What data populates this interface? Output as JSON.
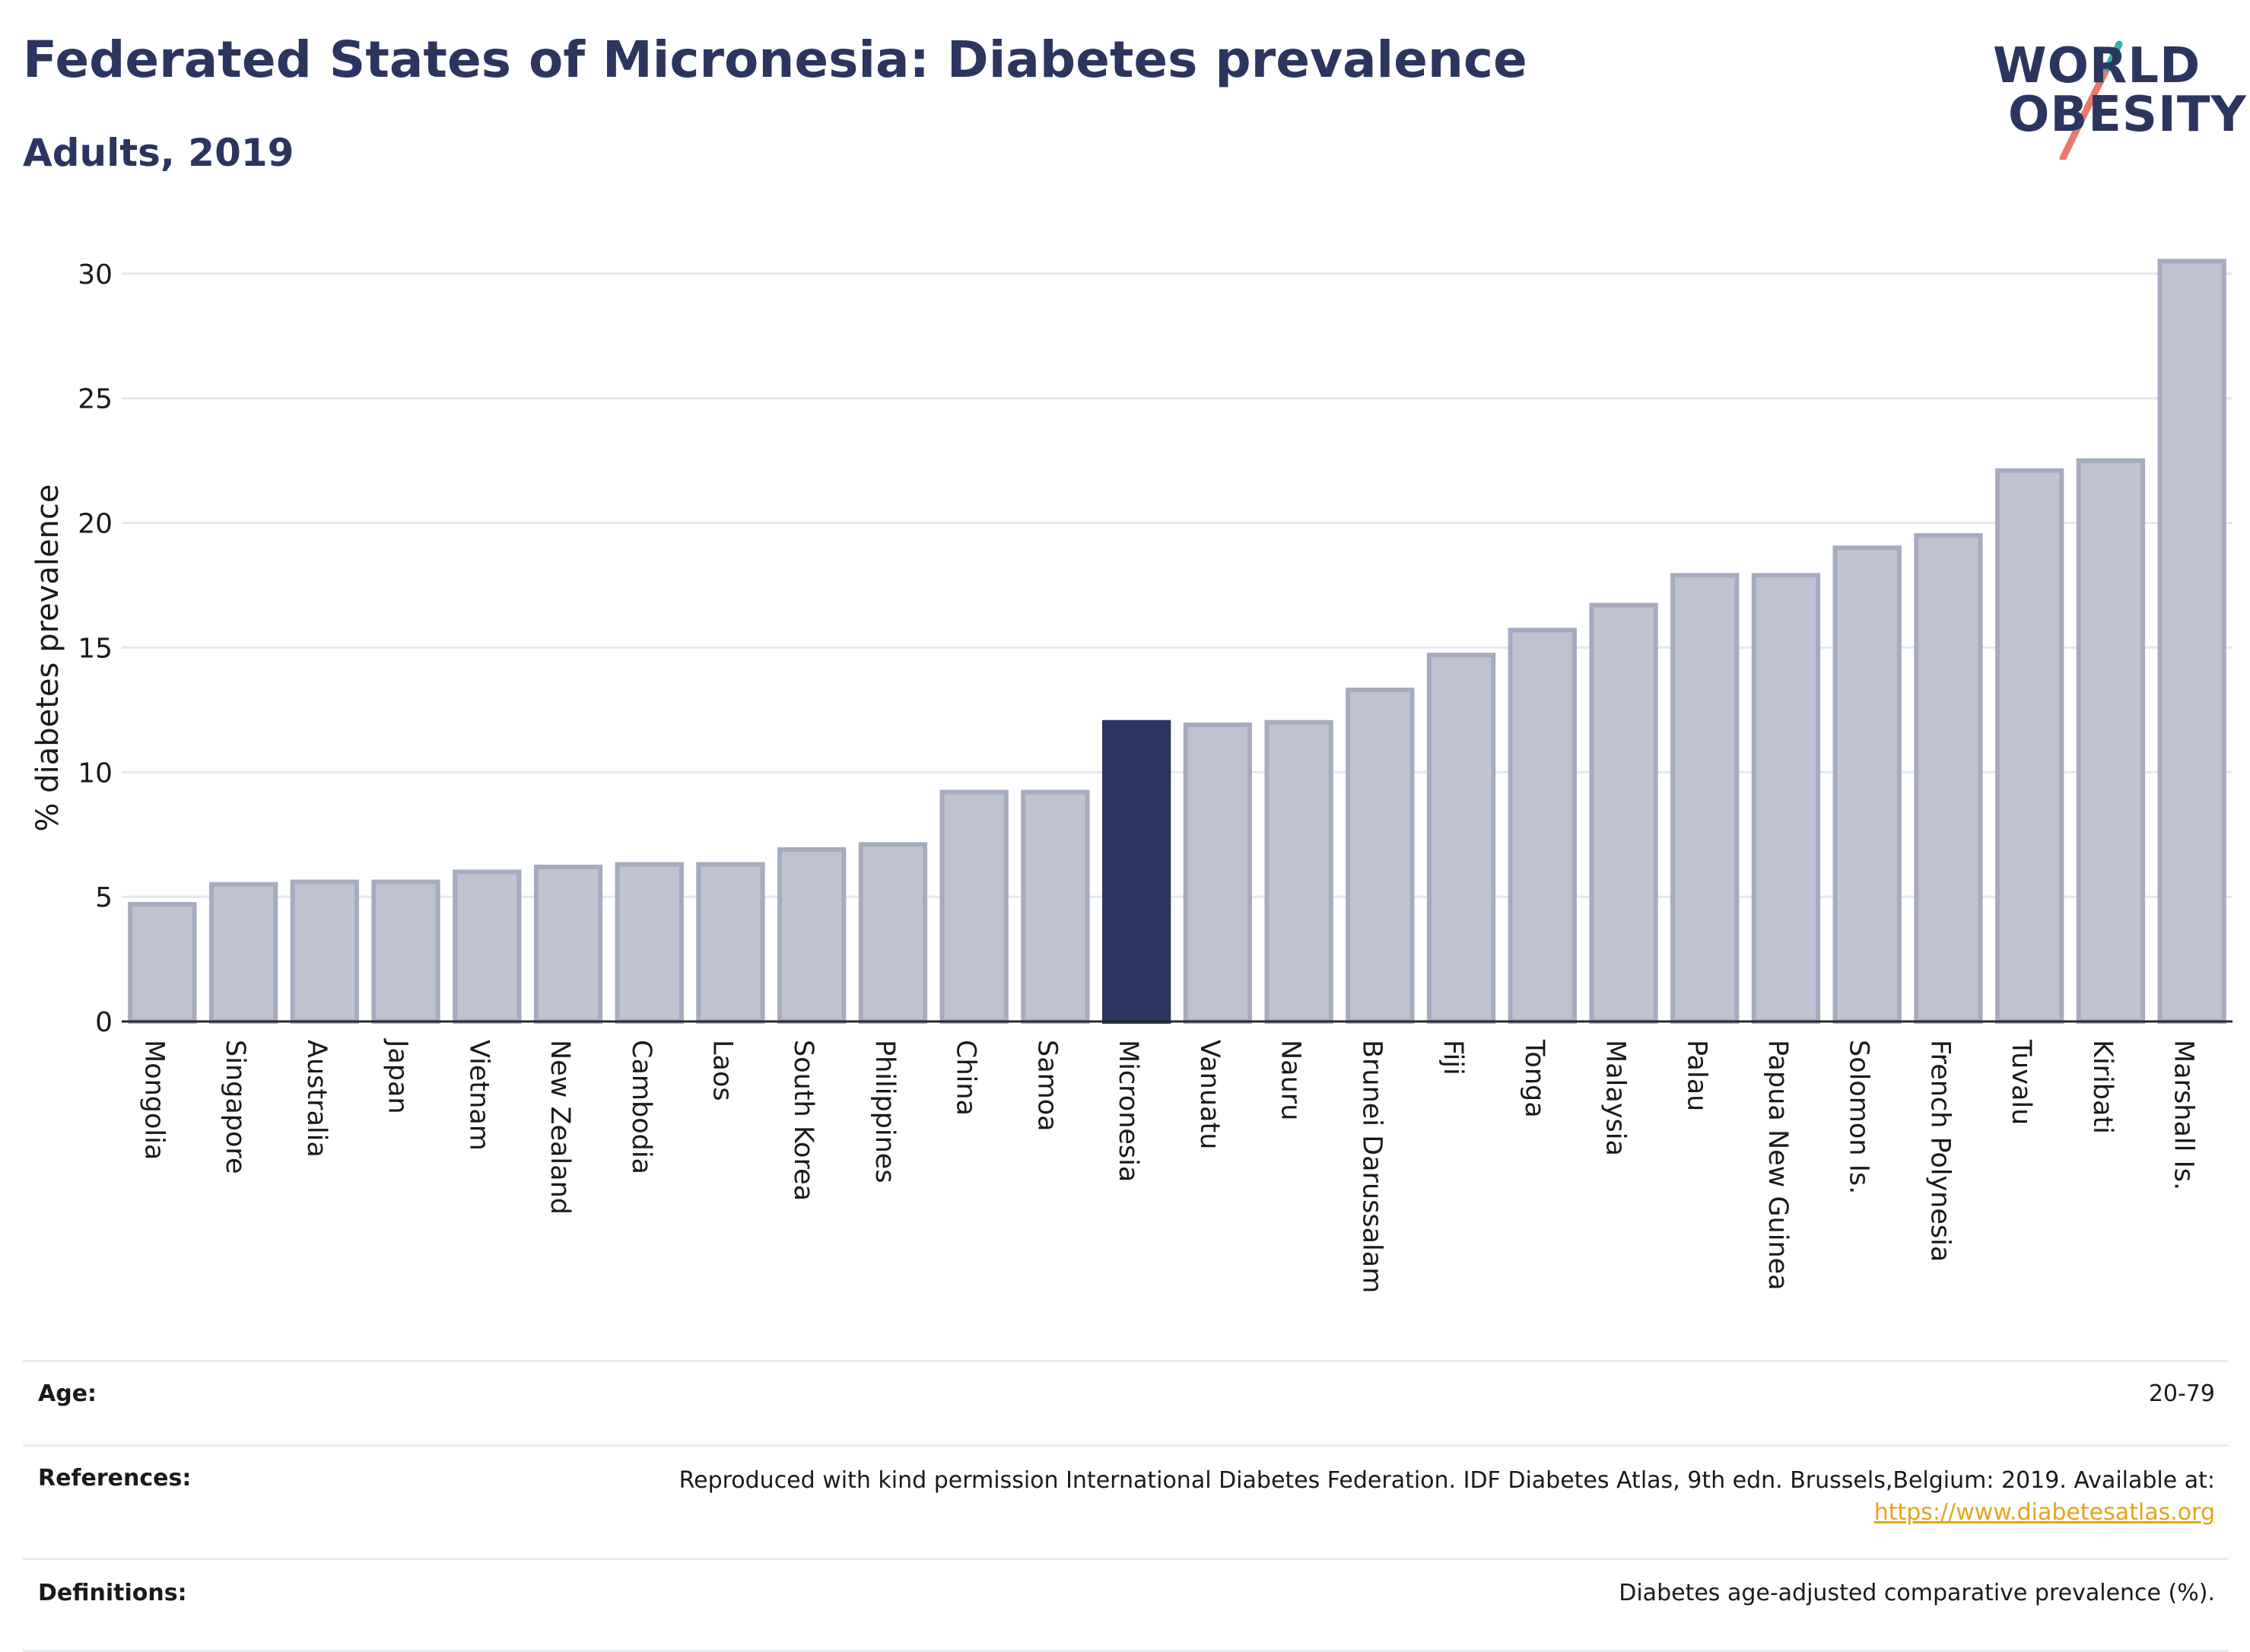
{
  "title": "Federated States of Micronesia: Diabetes prevalence",
  "subtitle": "Adults, 2019",
  "logo": {
    "line1": "WORLD",
    "line2": "OBESITY",
    "accent_teal": "#2bb3b0",
    "accent_coral": "#e87a6a"
  },
  "colors": {
    "highlight": "#2c3560",
    "bar": "#bfc3d1",
    "bar_edge": "#a6abc0"
  },
  "chart_data": {
    "type": "bar",
    "categories": [
      "Mongolia",
      "Singapore",
      "Australia",
      "Japan",
      "Vietnam",
      "New Zealand",
      "Cambodia",
      "Laos",
      "South Korea",
      "Philippines",
      "China",
      "Samoa",
      "Micronesia",
      "Vanuatu",
      "Nauru",
      "Brunei Darussalam",
      "Fiji",
      "Tonga",
      "Malaysia",
      "Palau",
      "Papua New Guinea",
      "Solomon Is.",
      "French Polynesia",
      "Tuvalu",
      "Kiribati",
      "Marshall Is."
    ],
    "values": [
      4.7,
      5.5,
      5.6,
      5.6,
      6.0,
      6.2,
      6.3,
      6.3,
      6.9,
      7.1,
      9.2,
      9.2,
      12.0,
      11.9,
      12.0,
      13.3,
      14.7,
      15.7,
      16.7,
      17.9,
      17.9,
      19.0,
      19.5,
      22.1,
      22.5,
      30.5
    ],
    "highlight": "Micronesia",
    "ylabel": "% diabetes prevalence",
    "xlabel": "",
    "ylim": [
      0,
      31
    ],
    "yticks": [
      0,
      5,
      10,
      15,
      20,
      25,
      30
    ],
    "grid": true
  },
  "info": {
    "age_label": "Age:",
    "age_value": "20-79",
    "references_label": "References:",
    "references_text": "Reproduced with kind permission International Diabetes Federation. IDF Diabetes Atlas, 9th edn. Brussels,Belgium: 2019. Available at:",
    "references_link": "https://www.diabetesatlas.org",
    "definitions_label": "Definitions:",
    "definitions_text": "Diabetes age-adjusted comparative prevalence (%)."
  }
}
